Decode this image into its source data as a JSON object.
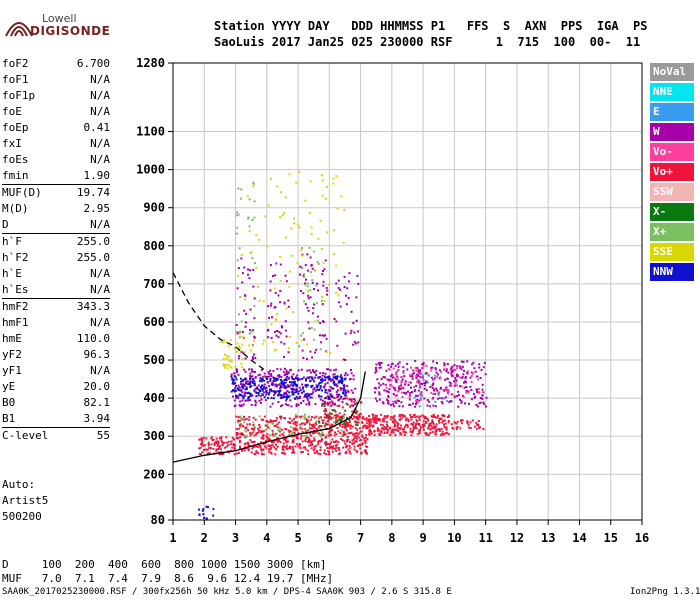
{
  "logo": {
    "line1": "Lowell",
    "line2": "DIGISONDE"
  },
  "header": {
    "line1": "Station YYYY DAY   DDD HHMMSS P1   FFS  S  AXN  PPS  IGA  PS",
    "line2": "SaoLuis 2017 Jan25 025 230000 RSF      1  715  100  00-  11"
  },
  "params": [
    [
      {
        "name": "foF2",
        "value": "6.700"
      },
      {
        "name": "foF1",
        "value": "N/A"
      },
      {
        "name": "foF1p",
        "value": "N/A"
      },
      {
        "name": "foE",
        "value": "N/A"
      },
      {
        "name": "foEp",
        "value": "0.41"
      },
      {
        "name": "fxI",
        "value": "N/A"
      },
      {
        "name": "foEs",
        "value": "N/A"
      },
      {
        "name": "fmin",
        "value": "1.90"
      }
    ],
    [
      {
        "name": "MUF(D)",
        "value": "19.74"
      },
      {
        "name": "M(D)",
        "value": "2.95"
      },
      {
        "name": "D",
        "value": "N/A"
      }
    ],
    [
      {
        "name": "h`F",
        "value": "255.0"
      },
      {
        "name": "h`F2",
        "value": "255.0"
      },
      {
        "name": "h`E",
        "value": "N/A"
      },
      {
        "name": "h`Es",
        "value": "N/A"
      }
    ],
    [
      {
        "name": "hmF2",
        "value": "343.3"
      },
      {
        "name": "hmF1",
        "value": "N/A"
      },
      {
        "name": "hmE",
        "value": "110.0"
      },
      {
        "name": "yF2",
        "value": "96.3"
      },
      {
        "name": "yF1",
        "value": "N/A"
      },
      {
        "name": "yE",
        "value": "20.0"
      },
      {
        "name": "B0",
        "value": "82.1"
      },
      {
        "name": "B1",
        "value": "3.94"
      }
    ],
    [
      {
        "name": "C-level",
        "value": "55"
      }
    ]
  ],
  "auto": {
    "line1": "Auto:",
    "line2": "Artist5",
    "line3": "500200"
  },
  "legend": [
    {
      "label": "NoVal",
      "color": "#9a9a9a"
    },
    {
      "label": "NNE",
      "color": "#00e5ee"
    },
    {
      "label": "E",
      "color": "#3a9cf0"
    },
    {
      "label": "W",
      "color": "#a800a8"
    },
    {
      "label": "Vo-",
      "color": "#ff3fa0"
    },
    {
      "label": "Vo+",
      "color": "#f0143c"
    },
    {
      "label": "SSW",
      "color": "#f4b4b4"
    },
    {
      "label": "X-",
      "color": "#0a7a10"
    },
    {
      "label": "X+",
      "color": "#7ac060"
    },
    {
      "label": "SSE",
      "color": "#d8d800"
    },
    {
      "label": "NNW",
      "color": "#1010d0"
    }
  ],
  "bottom": {
    "d_row": "D     100  200  400  600  800 1000 1500 3000 [km]",
    "muf_row": "MUF   7.0  7.1  7.4  7.9  8.6  9.6 12.4 19.7 [MHz]"
  },
  "footer": {
    "left": "SAA0K_2017025230000.RSF / 300fx256h 50 kHz 5.0 km / DPS-4 SAA0K 903 / 2.6 S 315.8 E",
    "right": "Ion2Png 1.3.17"
  },
  "chart_data": {
    "type": "scatter",
    "title": "",
    "xlabel": "",
    "ylabel": "",
    "xlim": [
      1,
      16
    ],
    "ylim": [
      80,
      1280
    ],
    "x_ticks": [
      1,
      2,
      3,
      4,
      5,
      6,
      7,
      8,
      9,
      10,
      11,
      12,
      13,
      14,
      15,
      16
    ],
    "y_ticks": [
      80,
      200,
      300,
      400,
      500,
      600,
      700,
      800,
      900,
      1000,
      1100,
      1280
    ],
    "grid": true,
    "series": [
      {
        "name": "Vo+",
        "color": "#f0143c",
        "clusters": [
          {
            "x": [
              1.8,
              7.2
            ],
            "y": [
              255,
              300
            ],
            "density": 0.55
          },
          {
            "x": [
              3.0,
              7.2
            ],
            "y": [
              300,
              355
            ],
            "density": 0.5
          },
          {
            "x": [
              7.2,
              9.8
            ],
            "y": [
              305,
              360
            ],
            "density": 0.7
          },
          {
            "x": [
              9.8,
              10.9
            ],
            "y": [
              320,
              345
            ],
            "density": 0.4
          },
          {
            "x": [
              5.8,
              7.0
            ],
            "y": [
              350,
              410
            ],
            "density": 0.35
          }
        ]
      },
      {
        "name": "W",
        "color": "#a800a8",
        "clusters": [
          {
            "x": [
              2.8,
              6.8
            ],
            "y": [
              380,
              480
            ],
            "density": 0.3
          },
          {
            "x": [
              7.4,
              11.0
            ],
            "y": [
              380,
              500
            ],
            "density": 0.25
          },
          {
            "x": [
              3.0,
              3.6
            ],
            "y": [
              500,
              780
            ],
            "density": 0.08
          },
          {
            "x": [
              4.0,
              4.7
            ],
            "y": [
              500,
              760
            ],
            "density": 0.08
          },
          {
            "x": [
              5.0,
              5.9
            ],
            "y": [
              500,
              780
            ],
            "density": 0.08
          },
          {
            "x": [
              6.1,
              6.9
            ],
            "y": [
              500,
              740
            ],
            "density": 0.06
          }
        ]
      },
      {
        "name": "NNW",
        "color": "#1010d0",
        "clusters": [
          {
            "x": [
              2.8,
              6.5
            ],
            "y": [
              400,
              460
            ],
            "density": 0.4
          },
          {
            "x": [
              1.8,
              2.3
            ],
            "y": [
              85,
              120
            ],
            "density": 0.25
          }
        ]
      },
      {
        "name": "X+",
        "color": "#7ac060",
        "clusters": [
          {
            "x": [
              3.0,
              6.5
            ],
            "y": [
              300,
              360
            ],
            "density": 0.1
          },
          {
            "x": [
              3.0,
              3.6
            ],
            "y": [
              550,
              980
            ],
            "density": 0.04
          },
          {
            "x": [
              5.0,
              5.8
            ],
            "y": [
              520,
              800
            ],
            "density": 0.04
          }
        ]
      },
      {
        "name": "SSE",
        "color": "#d8d800",
        "clusters": [
          {
            "x": [
              2.5,
              3.3
            ],
            "y": [
              480,
              560
            ],
            "density": 0.18
          },
          {
            "x": [
              3.0,
              6.5
            ],
            "y": [
              520,
              1000
            ],
            "density": 0.02
          }
        ]
      },
      {
        "name": "X-",
        "color": "#0a7a10",
        "clusters": [
          {
            "x": [
              5.5,
              7.0
            ],
            "y": [
              330,
              390
            ],
            "density": 0.1
          }
        ]
      },
      {
        "name": "Vo-",
        "color": "#ff3fa0",
        "clusters": [
          {
            "x": [
              7.8,
              10.8
            ],
            "y": [
              390,
              490
            ],
            "density": 0.1
          }
        ]
      },
      {
        "name": "E",
        "color": "#3a9cf0",
        "clusters": [
          {
            "x": [
              8.6,
              9.8
            ],
            "y": [
              380,
              470
            ],
            "density": 0.05
          }
        ]
      }
    ],
    "traces": [
      {
        "kind": "solid",
        "points": [
          [
            1,
            232
          ],
          [
            2,
            250
          ],
          [
            3,
            262
          ],
          [
            4,
            285
          ],
          [
            5,
            305
          ],
          [
            6,
            320
          ],
          [
            6.7,
            350
          ],
          [
            7.0,
            400
          ],
          [
            7.15,
            470
          ]
        ]
      },
      {
        "kind": "dashed",
        "points": [
          [
            1.0,
            730
          ],
          [
            1.5,
            650
          ],
          [
            2.0,
            590
          ],
          [
            2.5,
            555
          ],
          [
            3.0,
            535
          ],
          [
            3.5,
            500
          ],
          [
            4.0,
            470
          ]
        ]
      }
    ]
  }
}
